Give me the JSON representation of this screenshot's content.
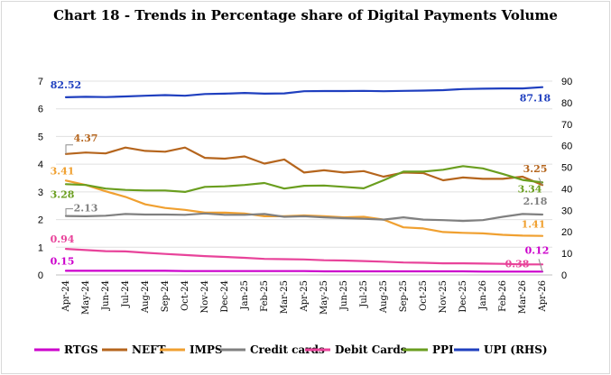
{
  "chart_data": {
    "type": "line",
    "title": "Chart 18 - Trends in Percentage share of Digital Payments Volume",
    "categories": [
      "Apr-24",
      "May-24",
      "Jun-24",
      "Jul-24",
      "Aug-24",
      "Sep-24",
      "Oct-24",
      "Nov-24",
      "Dec-24",
      "Jan-25",
      "Feb-25",
      "Mar-25",
      "Apr-25",
      "May-25",
      "Jun-25",
      "Jul-25",
      "Aug-25",
      "Sep-25",
      "Oct-25",
      "Nov-25",
      "Dec-25",
      "Jan-26",
      "Feb-26",
      "Mar-26",
      "Apr-26"
    ],
    "y_left": {
      "min": 0,
      "max": 7,
      "ticks": [
        "0",
        "1",
        "2",
        "3",
        "4",
        "5",
        "6",
        "7"
      ]
    },
    "y_right": {
      "min": 0,
      "max": 90,
      "ticks": [
        "0",
        "10",
        "20",
        "30",
        "40",
        "50",
        "60",
        "70",
        "80",
        "90"
      ]
    },
    "grid": true,
    "legend_position": "bottom",
    "series": [
      {
        "name": "RTGS",
        "axis": "left",
        "color": "#cc00cc",
        "values": [
          0.15,
          0.15,
          0.15,
          0.15,
          0.15,
          0.15,
          0.14,
          0.14,
          0.14,
          0.14,
          0.14,
          0.14,
          0.14,
          0.13,
          0.13,
          0.13,
          0.13,
          0.13,
          0.13,
          0.13,
          0.13,
          0.12,
          0.12,
          0.12,
          0.12
        ]
      },
      {
        "name": "NEFT",
        "axis": "left",
        "color": "#b5651d",
        "values": [
          4.37,
          4.42,
          4.39,
          4.6,
          4.48,
          4.45,
          4.6,
          4.23,
          4.2,
          4.28,
          4.02,
          4.17,
          3.7,
          3.78,
          3.7,
          3.75,
          3.55,
          3.7,
          3.68,
          3.42,
          3.52,
          3.47,
          3.47,
          3.55,
          3.25
        ]
      },
      {
        "name": "IMPS",
        "axis": "left",
        "color": "#f0a030",
        "values": [
          3.41,
          3.25,
          3.02,
          2.82,
          2.55,
          2.42,
          2.35,
          2.25,
          2.25,
          2.22,
          2.12,
          2.12,
          2.15,
          2.12,
          2.08,
          2.1,
          2.0,
          1.72,
          1.68,
          1.55,
          1.52,
          1.5,
          1.45,
          1.42,
          1.41
        ]
      },
      {
        "name": "Credit cards",
        "axis": "left",
        "color": "#808080",
        "values": [
          2.13,
          2.12,
          2.14,
          2.2,
          2.18,
          2.18,
          2.17,
          2.22,
          2.17,
          2.17,
          2.2,
          2.1,
          2.12,
          2.08,
          2.05,
          2.03,
          2.0,
          2.08,
          2.0,
          1.98,
          1.95,
          1.98,
          2.1,
          2.2,
          2.18
        ]
      },
      {
        "name": "Debit Cards",
        "axis": "left",
        "color": "#e8439a",
        "values": [
          0.94,
          0.9,
          0.86,
          0.85,
          0.8,
          0.76,
          0.72,
          0.68,
          0.65,
          0.62,
          0.58,
          0.57,
          0.56,
          0.53,
          0.52,
          0.5,
          0.48,
          0.45,
          0.44,
          0.42,
          0.42,
          0.41,
          0.4,
          0.38,
          0.38
        ]
      },
      {
        "name": "PPI",
        "axis": "left",
        "color": "#6a9e1f",
        "values": [
          3.28,
          3.25,
          3.12,
          3.07,
          3.05,
          3.05,
          3.0,
          3.18,
          3.2,
          3.25,
          3.32,
          3.12,
          3.22,
          3.23,
          3.18,
          3.13,
          3.42,
          3.73,
          3.73,
          3.8,
          3.93,
          3.85,
          3.65,
          3.43,
          3.34
        ]
      },
      {
        "name": "UPI (RHS)",
        "axis": "right",
        "color": "#1f3fbf",
        "values": [
          82.52,
          82.7,
          82.6,
          82.9,
          83.2,
          83.5,
          83.2,
          84.0,
          84.2,
          84.5,
          84.2,
          84.3,
          85.3,
          85.4,
          85.4,
          85.5,
          85.3,
          85.5,
          85.6,
          85.8,
          86.3,
          86.5,
          86.6,
          86.6,
          87.18
        ]
      }
    ],
    "data_labels": [
      {
        "series": "UPI (RHS)",
        "index": 0,
        "text": "82.52"
      },
      {
        "series": "UPI (RHS)",
        "index": 24,
        "text": "87.18"
      },
      {
        "series": "NEFT",
        "index": 0,
        "text": "4.37"
      },
      {
        "series": "NEFT",
        "index": 24,
        "text": "3.25"
      },
      {
        "series": "IMPS",
        "index": 0,
        "text": "3.41"
      },
      {
        "series": "IMPS",
        "index": 24,
        "text": "1.41"
      },
      {
        "series": "PPI",
        "index": 0,
        "text": "3.28"
      },
      {
        "series": "PPI",
        "index": 24,
        "text": "3.34"
      },
      {
        "series": "Credit cards",
        "index": 0,
        "text": "2.13"
      },
      {
        "series": "Credit cards",
        "index": 24,
        "text": "2.18"
      },
      {
        "series": "Debit Cards",
        "index": 0,
        "text": "0.94"
      },
      {
        "series": "Debit Cards",
        "index": 24,
        "text": "0.38"
      },
      {
        "series": "RTGS",
        "index": 0,
        "text": "0.15"
      },
      {
        "series": "RTGS",
        "index": 24,
        "text": "0.12"
      }
    ]
  }
}
